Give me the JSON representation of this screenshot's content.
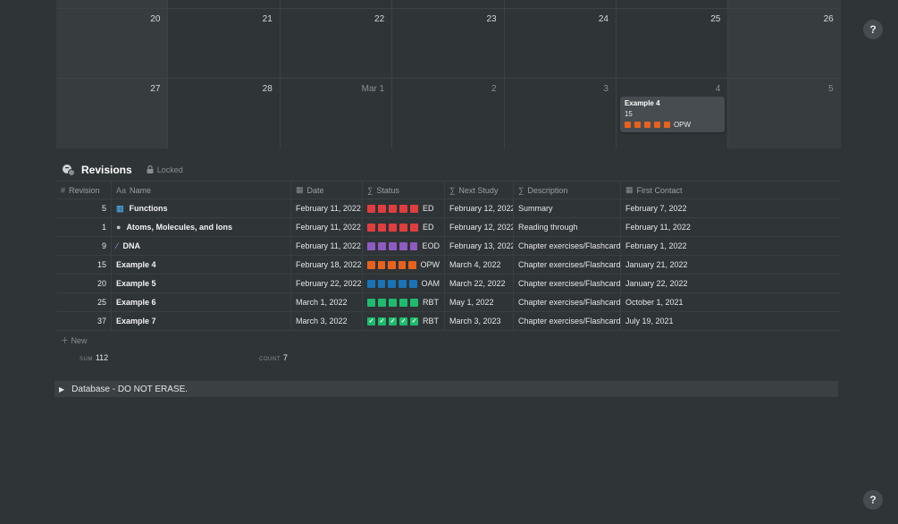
{
  "calendar": {
    "rows": [
      {
        "days": [
          {
            "num": "20",
            "muted": false,
            "weekend": true
          },
          {
            "num": "21",
            "muted": false,
            "weekend": false
          },
          {
            "num": "22",
            "muted": false,
            "weekend": false
          },
          {
            "num": "23",
            "muted": false,
            "weekend": false
          },
          {
            "num": "24",
            "muted": false,
            "weekend": false
          },
          {
            "num": "25",
            "muted": false,
            "weekend": false
          },
          {
            "num": "26",
            "muted": false,
            "weekend": true
          }
        ]
      },
      {
        "days": [
          {
            "num": "27",
            "muted": false,
            "weekend": true
          },
          {
            "num": "28",
            "muted": false,
            "weekend": false
          },
          {
            "num": "Mar 1",
            "muted": true,
            "weekend": false
          },
          {
            "num": "2",
            "muted": true,
            "weekend": false
          },
          {
            "num": "3",
            "muted": true,
            "weekend": false
          },
          {
            "num": "4",
            "muted": true,
            "weekend": false
          },
          {
            "num": "5",
            "muted": true,
            "weekend": true
          }
        ]
      }
    ],
    "event": {
      "title": "Example 4",
      "number": "15",
      "status": "OPW",
      "color": "#e8621d"
    }
  },
  "database": {
    "icon": "revisions-icon",
    "title": "Revisions",
    "locked_label": "Locked",
    "columns": {
      "revision": "Revision",
      "name": "Name",
      "date": "Date",
      "status": "Status",
      "next_study": "Next Study",
      "description": "Description",
      "first_contact": "First Contact"
    },
    "rows": [
      {
        "revision": "5",
        "icon": "abacus-icon",
        "icon_glyph": "▥",
        "icon_color": "#4aa3e0",
        "name": "Functions",
        "date": "February 11, 2022",
        "status_color": "#e03e3e",
        "status_checked": false,
        "status": "ED",
        "next_study": "February 12, 2022",
        "description": "Summary",
        "first_contact": "February 7, 2022"
      },
      {
        "revision": "1",
        "icon": "atom-icon",
        "icon_glyph": "●",
        "icon_color": "#b8c4cc",
        "name": "Atoms, Molecules, and Ions",
        "date": "February 11, 2022",
        "status_color": "#e03e3e",
        "status_checked": false,
        "status": "ED",
        "next_study": "February 12, 2022",
        "description": "Reading through",
        "first_contact": "February 11, 2022"
      },
      {
        "revision": "9",
        "icon": "dna-icon",
        "icon_glyph": "⁄",
        "icon_color": "#8b7fd0",
        "name": "DNA",
        "date": "February 11, 2022",
        "status_color": "#8f5ac2",
        "status_checked": false,
        "status": "EOD",
        "next_study": "February 13, 2022",
        "description": "Chapter exercises/Flashcards",
        "first_contact": "February 1, 2022"
      },
      {
        "revision": "15",
        "icon": "",
        "icon_glyph": "",
        "icon_color": "",
        "name": "Example 4",
        "date": "February 18, 2022",
        "status_color": "#e8621d",
        "status_checked": false,
        "status": "OPW",
        "next_study": "March 4, 2022",
        "description": "Chapter exercises/Flashcards",
        "first_contact": "January 21, 2022"
      },
      {
        "revision": "20",
        "icon": "",
        "icon_glyph": "",
        "icon_color": "",
        "name": "Example 5",
        "date": "February 22, 2022",
        "status_color": "#1a73b8",
        "status_checked": false,
        "status": "OAM",
        "next_study": "March 22, 2022",
        "description": "Chapter exercises/Flashcards",
        "first_contact": "January 22, 2022"
      },
      {
        "revision": "25",
        "icon": "",
        "icon_glyph": "",
        "icon_color": "",
        "name": "Example 6",
        "date": "March 1, 2022",
        "status_color": "#1fbb6d",
        "status_checked": false,
        "status": "RBT",
        "next_study": "May 1, 2022",
        "description": "Chapter exercises/Flashcards",
        "first_contact": "October 1, 2021"
      },
      {
        "revision": "37",
        "icon": "",
        "icon_glyph": "",
        "icon_color": "",
        "name": "Example 7",
        "date": "March 3, 2022",
        "status_color": "#1fbb6d",
        "status_checked": true,
        "status": "RBT",
        "next_study": "March 3, 2023",
        "description": "Chapter exercises/Flashcards",
        "first_contact": "July 19, 2021"
      }
    ],
    "new_label": "New",
    "sum_label": "SUM",
    "sum_value": "112",
    "count_label": "COUNT",
    "count_value": "7"
  },
  "toggle": {
    "label": "Database - DO NOT ERASE."
  },
  "help": {
    "label": "?"
  }
}
